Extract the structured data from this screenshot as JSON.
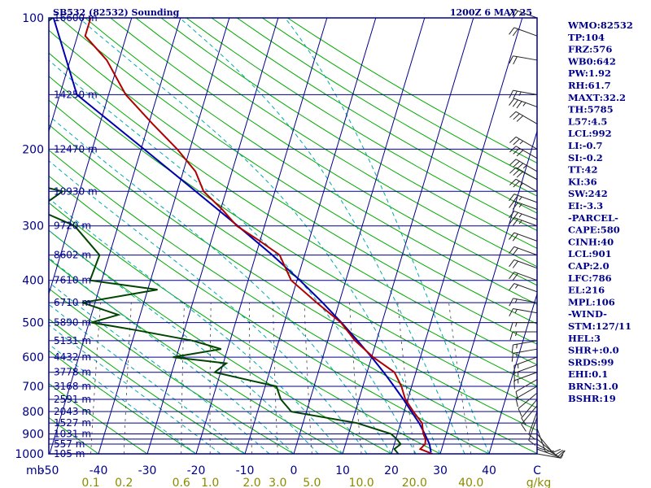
{
  "header": {
    "station": "SB532 (82532) Sounding",
    "time": "1200Z  6 MAY 25"
  },
  "chart_data": {
    "type": "skew-t sounding",
    "title": "SB532 (82532) Sounding",
    "pressure_axis_label": "mb",
    "pressure_ticks": [
      100,
      200,
      300,
      400,
      500,
      600,
      700,
      800,
      900,
      1000
    ],
    "pressure_levels": [
      100,
      150,
      200,
      250,
      300,
      350,
      400,
      450,
      500,
      550,
      600,
      650,
      700,
      750,
      800,
      850,
      900,
      925,
      950,
      1000
    ],
    "height_labels": [
      "16600 m",
      "14250 m",
      "12470 m",
      "10930 m",
      "9720 m",
      "8602 m",
      "7610 m",
      "6710 m",
      "5890 m",
      "5131 m",
      "4432 m",
      "3778 m",
      "3168 m",
      "2591 m",
      "2043 m",
      "1527 m",
      "1031 m",
      "557 m",
      "105 m"
    ],
    "height_label_pressures": [
      100,
      150,
      200,
      250,
      300,
      350,
      400,
      450,
      500,
      550,
      600,
      650,
      700,
      750,
      800,
      850,
      900,
      950,
      1000
    ],
    "temp_ticks": [
      "-50",
      "-40",
      "-30",
      "-20",
      "-10",
      "0",
      "10",
      "20",
      "30",
      "40",
      "C"
    ],
    "mixing_ratio_ticks": [
      "0.1",
      "0.2",
      "0.6",
      "1.0",
      "2.0",
      "3.0",
      "5.0",
      "10.0",
      "20.0",
      "40.0",
      "g/kg"
    ],
    "temperature_profile": {
      "p": [
        100,
        110,
        125,
        150,
        175,
        200,
        225,
        250,
        275,
        300,
        325,
        350,
        400,
        450,
        500,
        550,
        600,
        650,
        700,
        750,
        800,
        850,
        900,
        925,
        950,
        975,
        1000
      ],
      "t": [
        -68.4,
        -68.4,
        -62.5,
        -56.5,
        -49.2,
        -42.6,
        -37.5,
        -34.6,
        -29.7,
        -25.7,
        -20.0,
        -15.1,
        -11.2,
        -4.6,
        1.6,
        5.6,
        10.3,
        15.6,
        17.9,
        19.5,
        21.9,
        24.4,
        25.3,
        26.1,
        26.3,
        25.6,
        28.4
      ]
    },
    "dewpoint_profile": {
      "p": [
        100,
        110,
        125,
        150,
        175,
        200,
        225,
        230,
        250,
        275,
        300,
        350,
        400,
        420,
        450,
        480,
        500,
        520,
        550,
        575,
        600,
        620,
        650,
        680,
        700,
        750,
        800,
        850,
        900,
        925,
        950,
        975,
        1000
      ],
      "td": [
        -76.2,
        -80.0,
        -86.0,
        -83.0,
        -78.0,
        -72.1,
        -69.6,
        -78.0,
        -63.5,
        -67.6,
        -58.9,
        -52.0,
        -52.4,
        -38.0,
        -52.6,
        -44.5,
        -49.5,
        -40.0,
        -27.7,
        -21.3,
        -30.7,
        -19.4,
        -21.2,
        -13.1,
        -7.7,
        -6.0,
        -3.1,
        11.1,
        18.7,
        20.2,
        21.3,
        20.3,
        21.4
      ]
    },
    "parcel_profile": {
      "p": [
        100,
        150,
        200,
        250,
        300,
        350,
        400,
        450,
        500,
        550,
        600,
        650,
        700,
        750,
        800,
        850,
        900,
        950,
        992
      ],
      "t": [
        -76.0,
        -66.5,
        -49.4,
        -36.2,
        -25.5,
        -16.6,
        -9.4,
        -3.4,
        1.7,
        6.1,
        10.0,
        13.4,
        16.4,
        19.1,
        21.5,
        23.8,
        25.6,
        27.2,
        28.0
      ]
    },
    "wind_barbs": {
      "p": [
        100,
        110,
        125,
        150,
        160,
        175,
        200,
        210,
        225,
        235,
        250,
        265,
        275,
        290,
        300,
        325,
        350,
        375,
        400,
        425,
        450,
        475,
        500,
        525,
        550,
        575,
        600,
        625,
        650,
        675,
        700,
        725,
        750,
        775,
        800,
        825,
        850,
        875,
        900,
        925,
        950,
        975,
        1000
      ],
      "dir": [
        290,
        290,
        280,
        280,
        290,
        300,
        300,
        300,
        300,
        300,
        300,
        290,
        290,
        290,
        290,
        290,
        290,
        290,
        290,
        290,
        280,
        280,
        270,
        270,
        260,
        260,
        250,
        250,
        250,
        240,
        240,
        230,
        220,
        220,
        200,
        200,
        180,
        160,
        140,
        130,
        120,
        110,
        100
      ],
      "speed_kt": [
        25,
        20,
        20,
        25,
        35,
        30,
        25,
        30,
        35,
        30,
        25,
        25,
        25,
        25,
        25,
        20,
        20,
        20,
        20,
        15,
        15,
        15,
        15,
        15,
        15,
        15,
        15,
        15,
        15,
        10,
        10,
        10,
        10,
        10,
        10,
        10,
        10,
        10,
        10,
        10,
        10,
        10,
        5
      ]
    }
  },
  "indices": [
    "WMO:82532",
    "TP:104",
    "FRZ:576",
    "WB0:642",
    "PW:1.92",
    "RH:61.7",
    "MAXT:32.2",
    "TH:5785",
    "L57:4.5",
    "LCL:992",
    "LI:-0.7",
    "SI:-0.2",
    "TT:42",
    "KI:36",
    "SW:242",
    "EI:-3.3",
    "-PARCEL-",
    "CAPE:580",
    "CINH:40",
    "LCL:901",
    "CAP:2.0",
    "LFC:786",
    "EL:216",
    "MPL:106",
    "-WIND-",
    "STM:127/11",
    "HEL:3",
    "SHR+:0.0",
    "SRDS:99",
    "EHI:0.1",
    "BRN:31.0",
    "BSHR:19"
  ],
  "colors": {
    "isobar": "#00008b",
    "frame": "#00008b",
    "isotherm": "#00008b",
    "dry_adiabat": "#00aa00",
    "moist_adiabat": "#00aaaa",
    "mixing_ratio": "#444444",
    "temperature": "#b00000",
    "dewpoint": "#004400",
    "parcel": "#0000b0",
    "wind": "#222222",
    "text": "#00008b",
    "mixing_label": "#8b8b00"
  }
}
